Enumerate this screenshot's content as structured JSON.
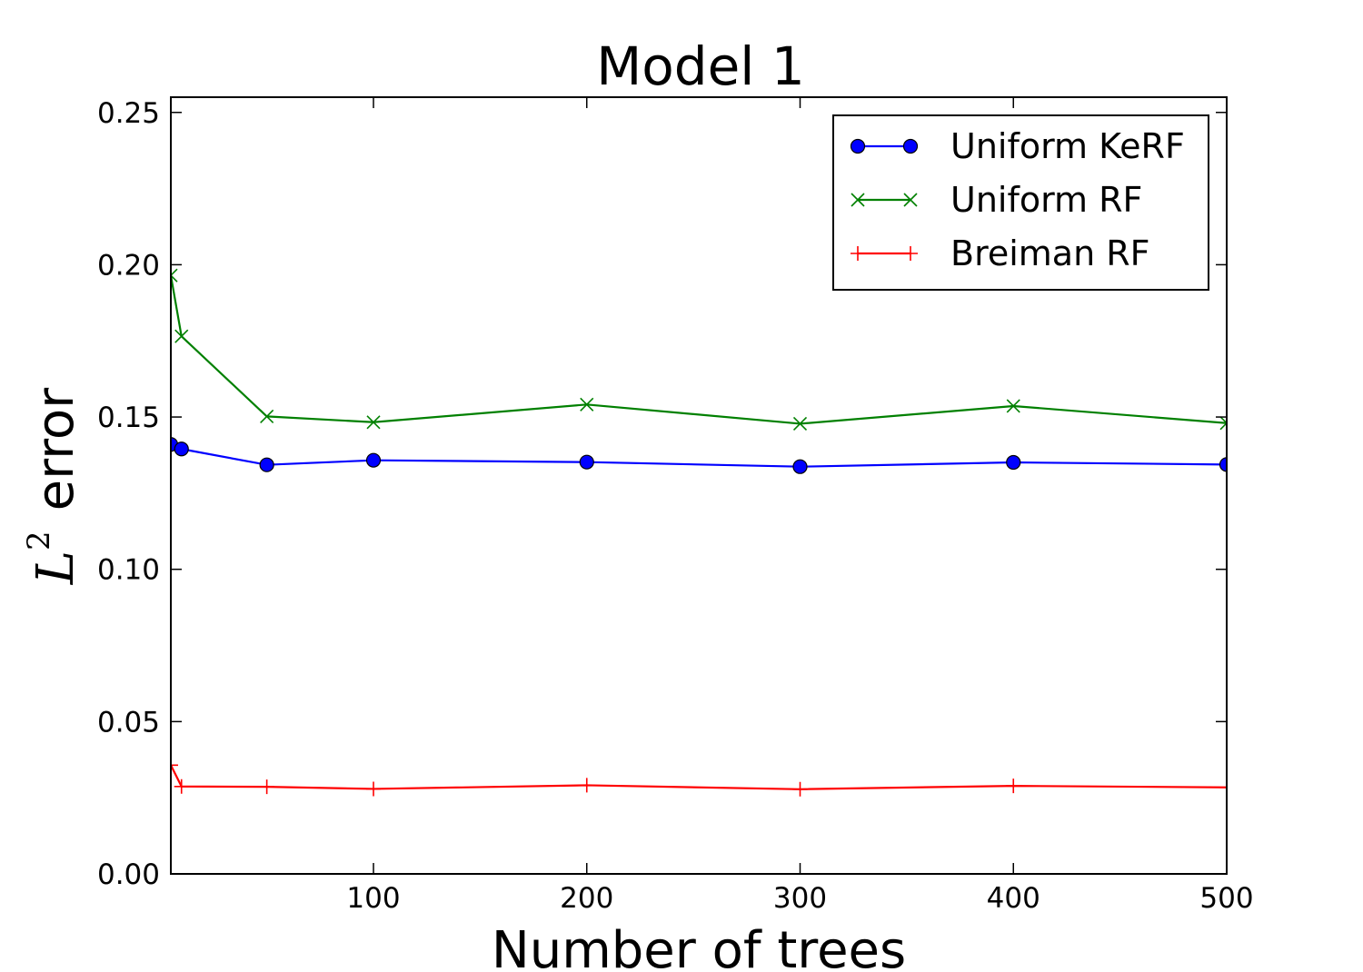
{
  "chart_data": {
    "type": "line",
    "title": "Model 1",
    "xlabel": "Number of trees",
    "ylabel": {
      "math_base": "L",
      "math_sup": "2",
      "text": "error"
    },
    "xlim": [
      5,
      500
    ],
    "ylim": [
      0.0,
      0.255
    ],
    "x_ticks": [
      {
        "value": 100,
        "label": "100"
      },
      {
        "value": 200,
        "label": "200"
      },
      {
        "value": 300,
        "label": "300"
      },
      {
        "value": 400,
        "label": "400"
      },
      {
        "value": 500,
        "label": "500"
      }
    ],
    "y_ticks": [
      {
        "value": 0.0,
        "label": "0.00"
      },
      {
        "value": 0.05,
        "label": "0.05"
      },
      {
        "value": 0.1,
        "label": "0.10"
      },
      {
        "value": 0.15,
        "label": "0.15"
      },
      {
        "value": 0.2,
        "label": "0.20"
      },
      {
        "value": 0.25,
        "label": "0.25"
      }
    ],
    "grid": false,
    "legend_position": "top-right",
    "series": [
      {
        "name": "Uniform KeRF",
        "color": "#0000ff",
        "marker": "circle",
        "x": [
          5,
          10,
          50,
          100,
          200,
          300,
          400,
          500
        ],
        "y": [
          0.141,
          0.1395,
          0.1343,
          0.1358,
          0.1352,
          0.1337,
          0.1351,
          0.1344
        ]
      },
      {
        "name": "Uniform RF",
        "color": "#008000",
        "marker": "x",
        "x": [
          5,
          10,
          50,
          100,
          200,
          300,
          400,
          500
        ],
        "y": [
          0.1965,
          0.1765,
          0.1502,
          0.1483,
          0.1541,
          0.1478,
          0.1536,
          0.148
        ]
      },
      {
        "name": "Breiman RF",
        "color": "#ff0000",
        "marker": "plus",
        "x": [
          5,
          10,
          50,
          100,
          200,
          300,
          400,
          500
        ],
        "y": [
          0.0357,
          0.0287,
          0.0286,
          0.0279,
          0.0291,
          0.0278,
          0.0289,
          0.0284
        ]
      }
    ]
  }
}
